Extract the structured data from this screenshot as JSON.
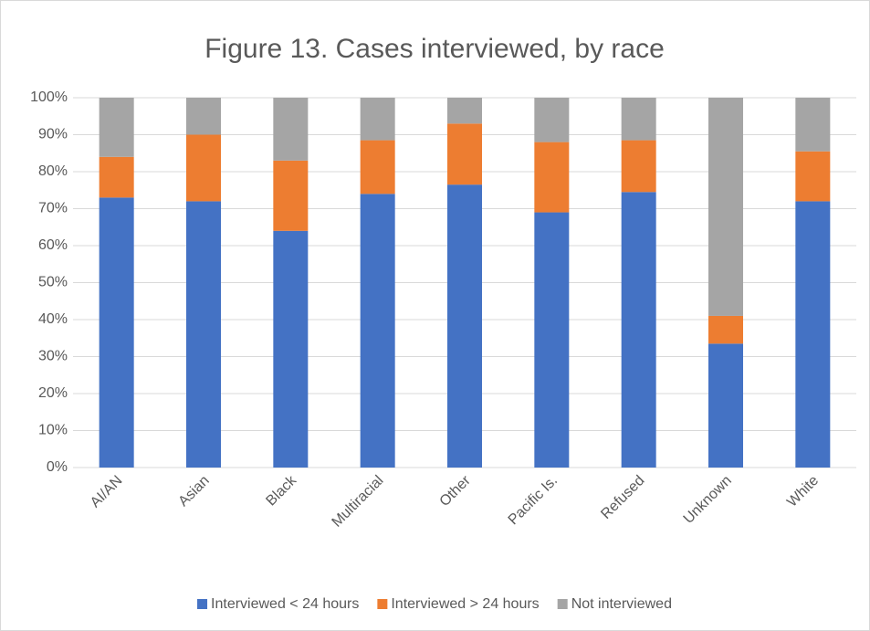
{
  "chart_data": {
    "type": "stacked_bar",
    "title": "Figure 13. Cases interviewed, by race",
    "categories": [
      "AI/AN",
      "Asian",
      "Black",
      "Multiracial",
      "Other",
      "Pacific Is.",
      "Refused",
      "Unknown",
      "White"
    ],
    "series": [
      {
        "name": "Interviewed < 24 hours",
        "color": "#4472c4",
        "values": [
          73,
          72,
          64,
          74,
          76.5,
          69,
          74.5,
          33.5,
          72
        ]
      },
      {
        "name": "Interviewed > 24 hours",
        "color": "#ed7d31",
        "values": [
          11,
          18,
          19,
          14.5,
          16.5,
          19,
          14,
          7.5,
          13.5
        ]
      },
      {
        "name": "Not interviewed",
        "color": "#a5a5a5",
        "values": [
          16,
          10,
          17,
          11.5,
          7,
          12,
          11.5,
          59,
          14.5
        ]
      }
    ],
    "ylim": [
      0,
      100
    ],
    "yticks": [
      {
        "value": 0,
        "label": "0%"
      },
      {
        "value": 10,
        "label": "10%"
      },
      {
        "value": 20,
        "label": "20%"
      },
      {
        "value": 30,
        "label": "30%"
      },
      {
        "value": 40,
        "label": "40%"
      },
      {
        "value": 50,
        "label": "50%"
      },
      {
        "value": 60,
        "label": "60%"
      },
      {
        "value": 70,
        "label": "70%"
      },
      {
        "value": 80,
        "label": "80%"
      },
      {
        "value": 90,
        "label": "90%"
      },
      {
        "value": 100,
        "label": "100%"
      }
    ],
    "grid": true,
    "legend": "bottom"
  }
}
